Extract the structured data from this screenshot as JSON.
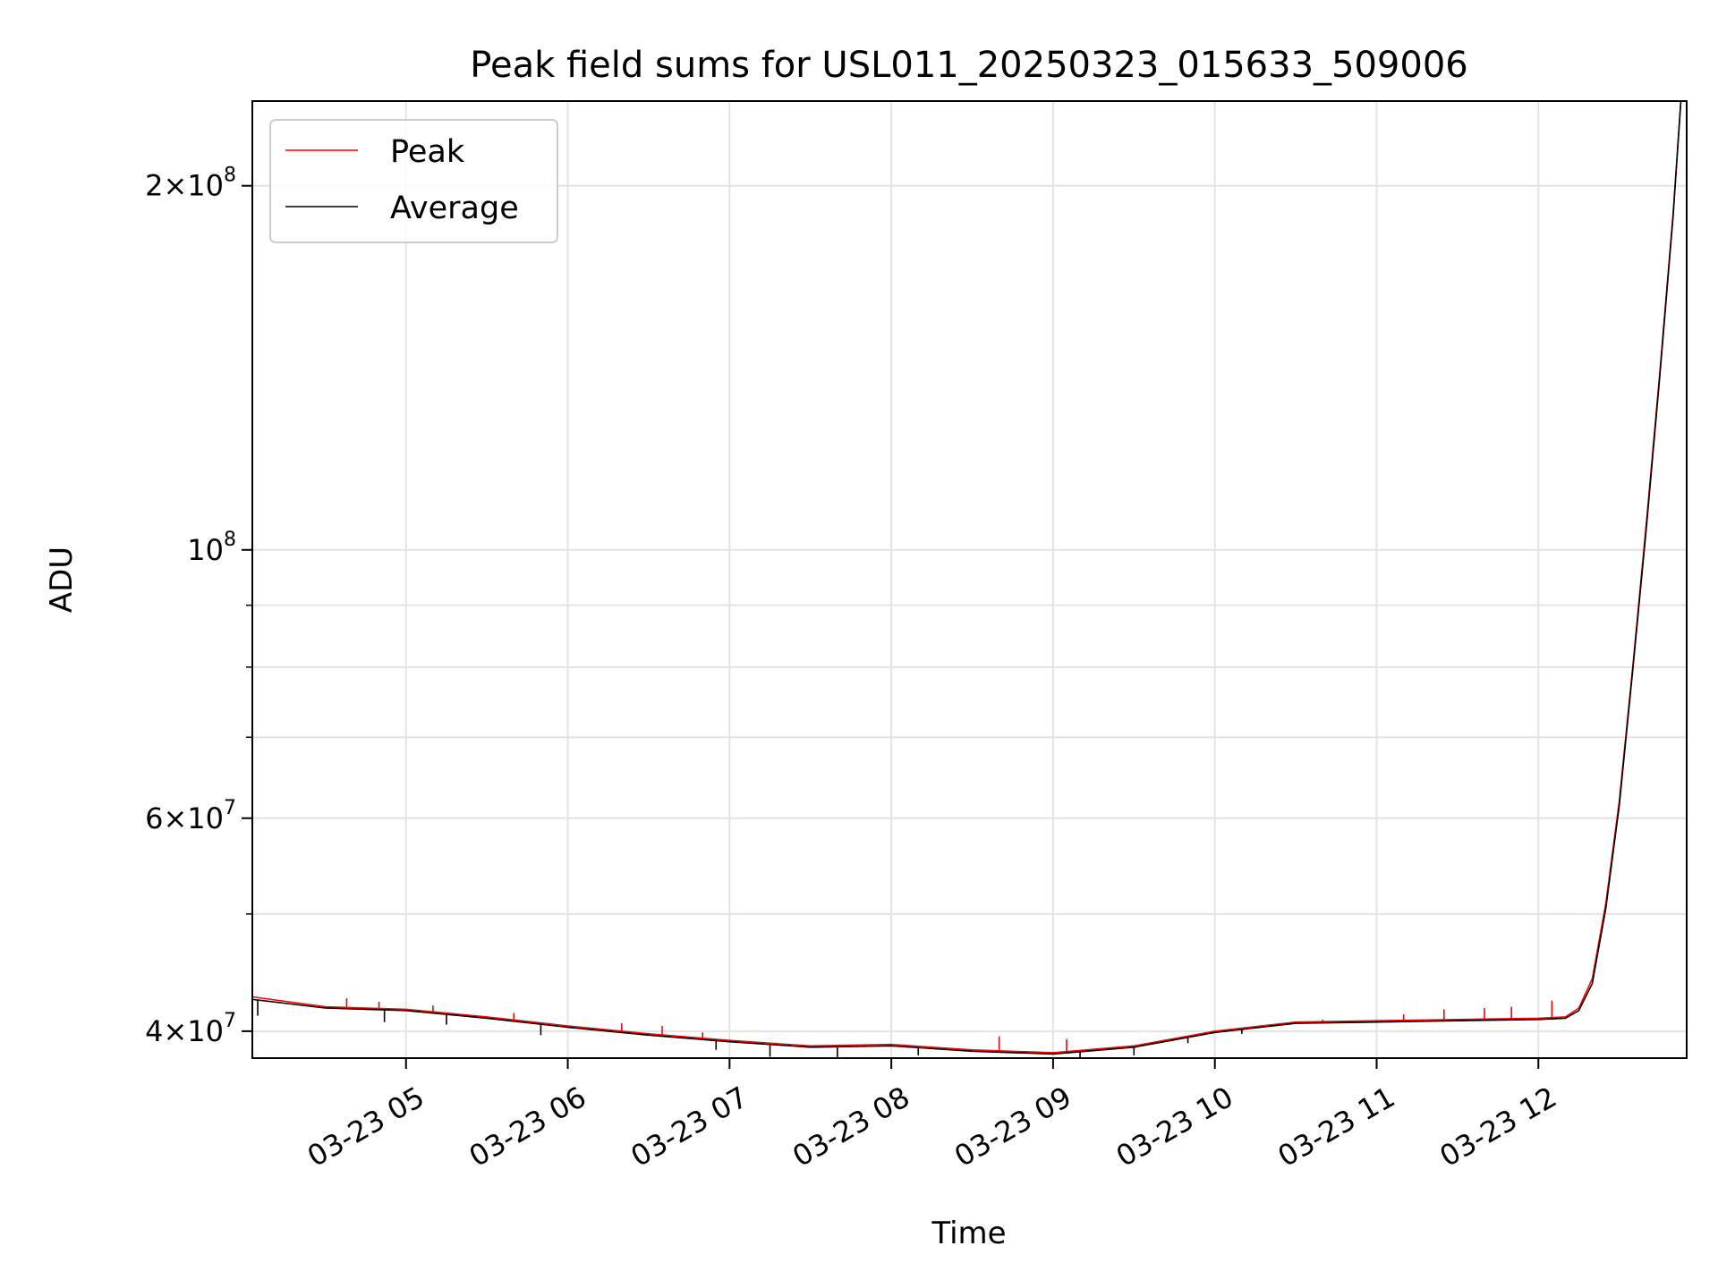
{
  "chart_data": {
    "type": "line",
    "title": "Peak field sums for USL011_20250323_015633_509006",
    "xlabel": "Time",
    "ylabel": "ADU",
    "yscale": "log",
    "ylim": [
      38000000,
      235000000
    ],
    "xlim": [
      "2025-03-23 04:03",
      "2025-03-23 12:55"
    ],
    "grid": true,
    "legend": {
      "placement": "top-left",
      "entries": [
        "Peak",
        "Average"
      ]
    },
    "x_tick_labels": [
      "03-23 05",
      "03-23 06",
      "03-23 07",
      "03-23 08",
      "03-23 09",
      "03-23 10",
      "03-23 11",
      "03-23 12"
    ],
    "x_tick_values": [
      "2025-03-23 05:00",
      "2025-03-23 06:00",
      "2025-03-23 07:00",
      "2025-03-23 08:00",
      "2025-03-23 09:00",
      "2025-03-23 10:00",
      "2025-03-23 11:00",
      "2025-03-23 12:00"
    ],
    "y_major_ticks": [
      {
        "value": 40000000,
        "mantissa": "4",
        "exponent": "7"
      },
      {
        "value": 60000000,
        "mantissa": "6",
        "exponent": "7"
      },
      {
        "value": 100000000,
        "mantissa": "",
        "exponent": "8"
      },
      {
        "value": 200000000,
        "mantissa": "2",
        "exponent": "8"
      }
    ],
    "y_minor_ticks": [
      50000000,
      70000000,
      80000000,
      90000000
    ],
    "series": [
      {
        "name": "Peak",
        "color": "#ff0000",
        "x": [
          "2025-03-23 04:03",
          "2025-03-23 04:30",
          "2025-03-23 05:00",
          "2025-03-23 05:30",
          "2025-03-23 06:00",
          "2025-03-23 06:30",
          "2025-03-23 07:00",
          "2025-03-23 07:30",
          "2025-03-23 08:00",
          "2025-03-23 08:30",
          "2025-03-23 09:00",
          "2025-03-23 09:30",
          "2025-03-23 10:00",
          "2025-03-23 10:30",
          "2025-03-23 11:00",
          "2025-03-23 11:30",
          "2025-03-23 12:00",
          "2025-03-23 12:10",
          "2025-03-23 12:15",
          "2025-03-23 12:20",
          "2025-03-23 12:25",
          "2025-03-23 12:30",
          "2025-03-23 12:35",
          "2025-03-23 12:40",
          "2025-03-23 12:45",
          "2025-03-23 12:50",
          "2025-03-23 12:53"
        ],
        "values": [
          42700000,
          41900000,
          41700000,
          41100000,
          40400000,
          39800000,
          39300000,
          38900000,
          39000000,
          38600000,
          38400000,
          38900000,
          40000000,
          40700000,
          40800000,
          40900000,
          41000000,
          41100000,
          41800000,
          44200000,
          51000000,
          62000000,
          80000000,
          105000000,
          140000000,
          190000000,
          238000000
        ],
        "spikes": [
          {
            "x": "2025-03-23 04:38",
            "value": 42600000
          },
          {
            "x": "2025-03-23 04:50",
            "value": 42300000
          },
          {
            "x": "2025-03-23 05:10",
            "value": 42000000
          },
          {
            "x": "2025-03-23 05:40",
            "value": 41400000
          },
          {
            "x": "2025-03-23 06:20",
            "value": 40600000
          },
          {
            "x": "2025-03-23 06:35",
            "value": 40400000
          },
          {
            "x": "2025-03-23 06:50",
            "value": 39900000
          },
          {
            "x": "2025-03-23 08:40",
            "value": 39600000
          },
          {
            "x": "2025-03-23 09:05",
            "value": 39400000
          },
          {
            "x": "2025-03-23 10:40",
            "value": 40900000
          },
          {
            "x": "2025-03-23 11:10",
            "value": 41300000
          },
          {
            "x": "2025-03-23 11:25",
            "value": 41700000
          },
          {
            "x": "2025-03-23 11:40",
            "value": 41800000
          },
          {
            "x": "2025-03-23 11:50",
            "value": 41900000
          },
          {
            "x": "2025-03-23 12:05",
            "value": 42400000
          }
        ]
      },
      {
        "name": "Average",
        "color": "#000000",
        "x": [
          "2025-03-23 04:03",
          "2025-03-23 04:30",
          "2025-03-23 05:00",
          "2025-03-23 05:30",
          "2025-03-23 06:00",
          "2025-03-23 06:30",
          "2025-03-23 07:00",
          "2025-03-23 07:30",
          "2025-03-23 08:00",
          "2025-03-23 08:30",
          "2025-03-23 09:00",
          "2025-03-23 09:30",
          "2025-03-23 10:00",
          "2025-03-23 10:30",
          "2025-03-23 11:00",
          "2025-03-23 11:30",
          "2025-03-23 12:00",
          "2025-03-23 12:10",
          "2025-03-23 12:15",
          "2025-03-23 12:20",
          "2025-03-23 12:25",
          "2025-03-23 12:30",
          "2025-03-23 12:35",
          "2025-03-23 12:40",
          "2025-03-23 12:45",
          "2025-03-23 12:50",
          "2025-03-23 12:53"
        ],
        "values": [
          42500000,
          41800000,
          41600000,
          41000000,
          40300000,
          39700000,
          39200000,
          38800000,
          38900000,
          38500000,
          38300000,
          38800000,
          39900000,
          40600000,
          40700000,
          40800000,
          40900000,
          41000000,
          41600000,
          43800000,
          50500000,
          61500000,
          79500000,
          104000000,
          139000000,
          189000000,
          238000000
        ],
        "dips": [
          {
            "x": "2025-03-23 04:05",
            "value": 41200000
          },
          {
            "x": "2025-03-23 04:52",
            "value": 40700000
          },
          {
            "x": "2025-03-23 05:15",
            "value": 40500000
          },
          {
            "x": "2025-03-23 05:50",
            "value": 39700000
          },
          {
            "x": "2025-03-23 06:55",
            "value": 38600000
          },
          {
            "x": "2025-03-23 07:15",
            "value": 38100000
          },
          {
            "x": "2025-03-23 07:40",
            "value": 38000000
          },
          {
            "x": "2025-03-23 08:10",
            "value": 38200000
          },
          {
            "x": "2025-03-23 09:10",
            "value": 37900000
          },
          {
            "x": "2025-03-23 09:30",
            "value": 38200000
          },
          {
            "x": "2025-03-23 09:50",
            "value": 39100000
          },
          {
            "x": "2025-03-23 10:10",
            "value": 39800000
          }
        ]
      }
    ]
  }
}
